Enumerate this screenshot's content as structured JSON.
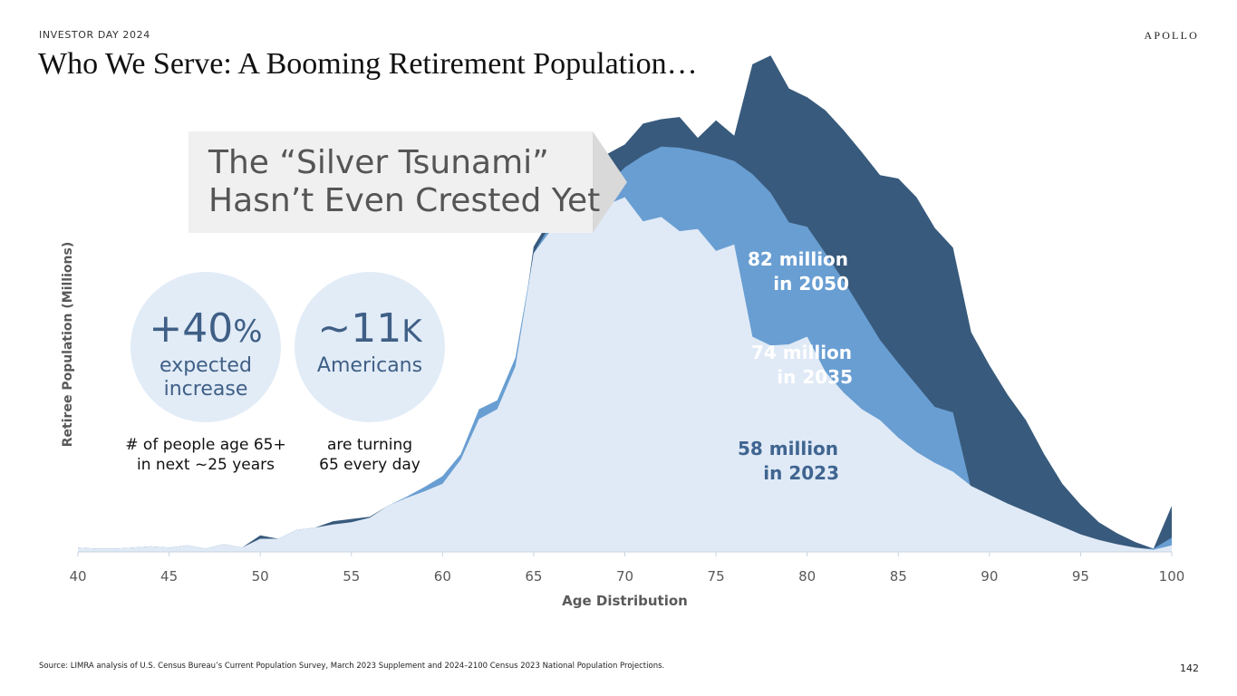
{
  "header": {
    "eyebrow": "INVESTOR DAY 2024",
    "logo": "APOLLO",
    "title": "Who We Serve: A Booming Retirement Population…"
  },
  "callout": {
    "line1": "The “Silver Tsunami”",
    "line2": "Hasn’t Even Crested Yet"
  },
  "stats": [
    {
      "value": "+40",
      "unit": "%",
      "label_line1": "expected",
      "label_line2": "increase",
      "caption_line1": "# of people age 65+",
      "caption_line2": "in next ~25 years"
    },
    {
      "value": "~11",
      "unit": "K",
      "label_line1": "Americans",
      "label_line2": "",
      "caption_line1": "are turning",
      "caption_line2": "65 every day"
    }
  ],
  "footer": {
    "source": "Source: LIMRA analysis of U.S. Census Bureau’s Current Population Survey, March 2023 Supplement and 2024–2100 Census 2023 National Population Projections.",
    "page_number": "142"
  },
  "colors": {
    "series_2050": "#385a7c",
    "series_2035": "#699ed2",
    "series_2023": "#e0eaf6",
    "bubble": "#e2ecf7",
    "callout": "#f0f0f0",
    "callout_arrow": "#d9d9d9"
  },
  "chart_data": {
    "type": "area",
    "title": "",
    "xlabel": "Age Distribution",
    "ylabel": "Retiree Population (Millions)",
    "xlim": [
      40,
      100
    ],
    "ylim": [
      0,
      4.2
    ],
    "x_ticks": [
      40,
      45,
      50,
      55,
      60,
      65,
      70,
      75,
      80,
      85,
      90,
      95,
      100
    ],
    "grid": false,
    "layering": "overlapping",
    "x": [
      40,
      41,
      42,
      43,
      44,
      45,
      46,
      47,
      48,
      49,
      50,
      51,
      52,
      53,
      54,
      55,
      56,
      57,
      58,
      59,
      60,
      61,
      62,
      63,
      64,
      65,
      66,
      67,
      68,
      69,
      70,
      71,
      72,
      73,
      74,
      75,
      76,
      77,
      78,
      79,
      80,
      81,
      82,
      83,
      84,
      85,
      86,
      87,
      88,
      89,
      90,
      91,
      92,
      93,
      94,
      95,
      96,
      97,
      98,
      99,
      100
    ],
    "series": [
      {
        "name": "2050",
        "label_line1": "82 million",
        "label_line2": "in 2050",
        "values": [
          0.04,
          0.03,
          0.03,
          0.04,
          0.05,
          0.04,
          0.06,
          0.03,
          0.07,
          0.04,
          0.15,
          0.12,
          0.2,
          0.22,
          0.28,
          0.3,
          0.32,
          0.42,
          0.48,
          0.54,
          0.6,
          0.83,
          1.12,
          1.32,
          1.62,
          2.78,
          3.06,
          3.21,
          3.38,
          3.62,
          3.71,
          3.9,
          3.94,
          3.96,
          3.77,
          3.93,
          3.79,
          4.44,
          4.52,
          4.22,
          4.14,
          4.02,
          3.84,
          3.64,
          3.43,
          3.4,
          3.23,
          2.95,
          2.77,
          2.0,
          1.7,
          1.43,
          1.2,
          0.89,
          0.62,
          0.43,
          0.27,
          0.17,
          0.09,
          0.03,
          0.42
        ]
      },
      {
        "name": "2035",
        "label_line1": "74 million",
        "label_line2": "in 2035",
        "values": [
          0.04,
          0.03,
          0.03,
          0.04,
          0.05,
          0.04,
          0.06,
          0.03,
          0.07,
          0.04,
          0.12,
          0.12,
          0.2,
          0.22,
          0.25,
          0.27,
          0.31,
          0.42,
          0.5,
          0.59,
          0.69,
          0.89,
          1.3,
          1.38,
          1.77,
          2.72,
          3.0,
          3.1,
          3.28,
          3.34,
          3.5,
          3.61,
          3.69,
          3.68,
          3.65,
          3.61,
          3.56,
          3.44,
          3.27,
          3.0,
          2.96,
          2.72,
          2.47,
          2.2,
          1.93,
          1.72,
          1.52,
          1.32,
          1.27,
          0.57,
          0.44,
          0.35,
          0.28,
          0.15,
          0.09,
          0.04,
          0.03,
          0.03,
          0.03,
          0.03,
          0.13
        ]
      },
      {
        "name": "2023",
        "label_line1": "58 million",
        "label_line2": "in 2023",
        "values": [
          0.04,
          0.03,
          0.03,
          0.04,
          0.05,
          0.04,
          0.06,
          0.03,
          0.07,
          0.04,
          0.12,
          0.12,
          0.2,
          0.22,
          0.25,
          0.27,
          0.31,
          0.42,
          0.49,
          0.55,
          0.62,
          0.84,
          1.21,
          1.3,
          1.69,
          2.72,
          2.94,
          3.04,
          3.23,
          3.16,
          3.23,
          3.01,
          3.05,
          2.92,
          2.94,
          2.74,
          2.8,
          1.96,
          1.88,
          1.89,
          1.96,
          1.64,
          1.45,
          1.3,
          1.2,
          1.04,
          0.91,
          0.81,
          0.73,
          0.6,
          0.52,
          0.44,
          0.37,
          0.3,
          0.23,
          0.16,
          0.11,
          0.07,
          0.04,
          0.02,
          0.06
        ]
      }
    ]
  }
}
